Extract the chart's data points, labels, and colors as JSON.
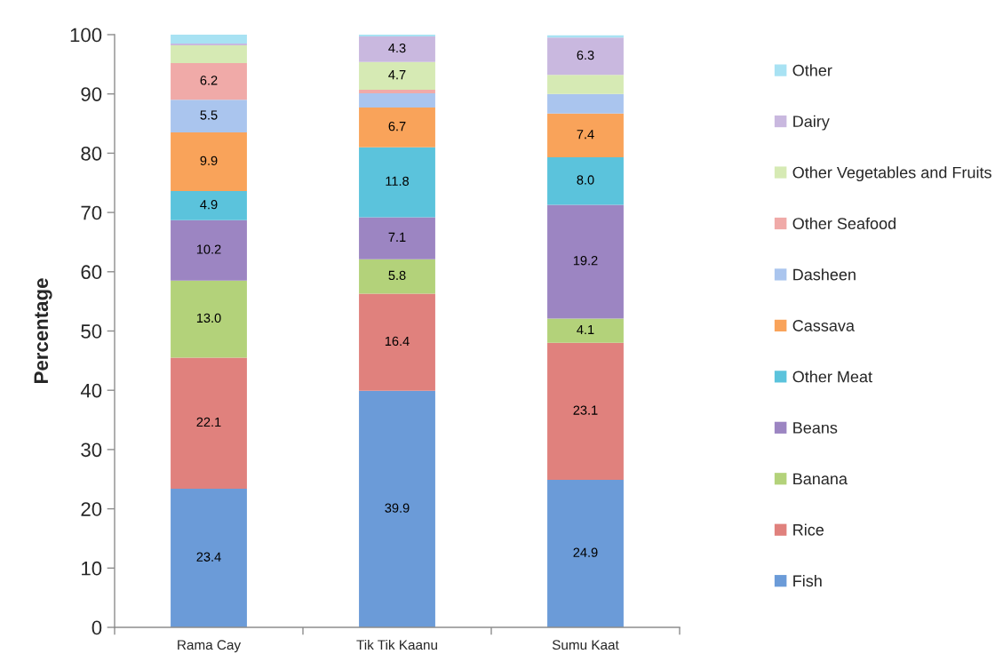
{
  "chart_data": {
    "type": "bar",
    "stacked": true,
    "ylabel": "Percentage",
    "categories": [
      "Rama Cay",
      "Tik Tik Kaanu",
      "Sumu Kaat"
    ],
    "ylim": [
      0,
      100
    ],
    "yticks": [
      0,
      10,
      20,
      30,
      40,
      50,
      60,
      70,
      80,
      90,
      100
    ],
    "legend": "right",
    "grid": false,
    "series": [
      {
        "name": "Fish",
        "color": "#6b9bd8",
        "values": [
          23.4,
          39.9,
          24.9
        ],
        "value_labels": [
          "23.4",
          "39.9",
          "24.9"
        ]
      },
      {
        "name": "Rice",
        "color": "#e0817d",
        "values": [
          22.1,
          16.4,
          23.1
        ],
        "value_labels": [
          "22.1",
          "16.4",
          "23.1"
        ]
      },
      {
        "name": "Banana",
        "color": "#b3d27a",
        "values": [
          13.0,
          5.8,
          4.1
        ],
        "value_labels": [
          "13.0",
          "5.8",
          "4.1"
        ]
      },
      {
        "name": "Beans",
        "color": "#9c85c2",
        "values": [
          10.2,
          7.1,
          19.2
        ],
        "value_labels": [
          "10.2",
          "7.1",
          "19.2"
        ]
      },
      {
        "name": "Other Meat",
        "color": "#5bc3dc",
        "values": [
          4.9,
          11.8,
          8.0
        ],
        "value_labels": [
          "4.9",
          "11.8",
          "8.0"
        ]
      },
      {
        "name": "Cassava",
        "color": "#f9a35a",
        "values": [
          9.9,
          6.7,
          7.4
        ],
        "value_labels": [
          "9.9",
          "6.7",
          "7.4"
        ]
      },
      {
        "name": "Dasheen",
        "color": "#aac5ee",
        "values": [
          5.5,
          2.4,
          3.3
        ],
        "value_labels": [
          "5.5",
          null,
          null
        ]
      },
      {
        "name": "Other Seafood",
        "color": "#f0aaa8",
        "values": [
          6.2,
          0.6,
          null
        ],
        "value_labels": [
          "6.2",
          null,
          null
        ]
      },
      {
        "name": "Other Vegetables and Fruits",
        "color": "#d6eab4",
        "values": [
          3.0,
          4.7,
          3.2
        ],
        "value_labels": [
          null,
          "4.7",
          null
        ]
      },
      {
        "name": "Dairy",
        "color": "#c9b8df",
        "values": [
          0.3,
          4.3,
          6.3
        ],
        "value_labels": [
          null,
          "4.3",
          "6.3"
        ]
      },
      {
        "name": "Other",
        "color": "#a8e2f3",
        "values": [
          1.5,
          0.3,
          0.4
        ]
      }
    ]
  }
}
